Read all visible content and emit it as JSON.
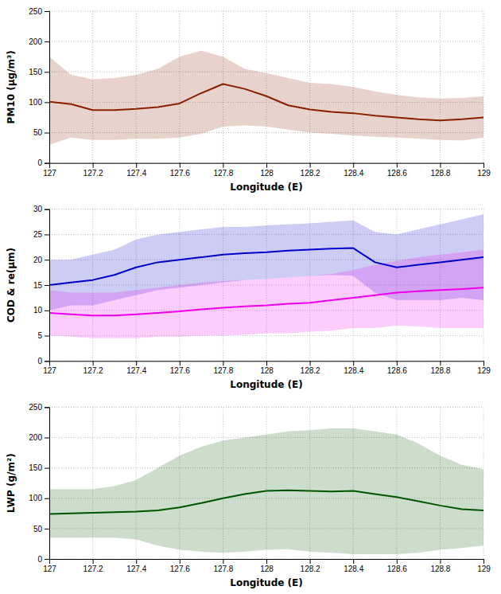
{
  "chart_data": [
    {
      "type": "line",
      "x": [
        127.0,
        127.1,
        127.2,
        127.3,
        127.4,
        127.5,
        127.6,
        127.7,
        127.8,
        127.9,
        128.0,
        128.1,
        128.2,
        128.3,
        128.4,
        128.5,
        128.6,
        128.7,
        128.8,
        128.9,
        129.0
      ],
      "series": [
        {
          "color": "#8B2000",
          "values": [
            101,
            97,
            87,
            87,
            89,
            92,
            98,
            115,
            130,
            122,
            110,
            95,
            88,
            84,
            82,
            78,
            75,
            72,
            70,
            72,
            75
          ],
          "upper": [
            175,
            145,
            138,
            140,
            145,
            155,
            175,
            185,
            175,
            155,
            148,
            140,
            132,
            130,
            125,
            118,
            112,
            108,
            106,
            107,
            110
          ],
          "lower": [
            30,
            42,
            38,
            38,
            40,
            40,
            42,
            48,
            60,
            62,
            60,
            55,
            50,
            48,
            45,
            43,
            42,
            40,
            38,
            37,
            42
          ]
        }
      ],
      "xlabel": "Longitude (E)",
      "ylabel": "PM10 (μg/m³)",
      "xlim": [
        127.0,
        129.0
      ],
      "xticks": [
        127,
        127.2,
        127.4,
        127.6,
        127.8,
        128,
        128.2,
        128.4,
        128.6,
        128.8,
        129
      ],
      "ylim": [
        0,
        250
      ],
      "yticks": [
        0,
        50,
        100,
        150,
        200,
        250
      ],
      "grid": true
    },
    {
      "type": "line",
      "x": [
        127.0,
        127.1,
        127.2,
        127.3,
        127.4,
        127.5,
        127.6,
        127.7,
        127.8,
        127.9,
        128.0,
        128.1,
        128.2,
        128.3,
        128.4,
        128.5,
        128.6,
        128.7,
        128.8,
        128.9,
        129.0
      ],
      "series": [
        {
          "color": "#0000CC",
          "values": [
            15.0,
            15.5,
            16.0,
            17.0,
            18.5,
            19.5,
            20.0,
            20.5,
            21.0,
            21.3,
            21.5,
            21.8,
            22.0,
            22.2,
            22.3,
            19.5,
            18.5,
            19.0,
            19.5,
            20.0,
            20.5
          ],
          "upper": [
            20.0,
            20.0,
            21.0,
            22.0,
            24.0,
            25.0,
            25.5,
            26.0,
            26.5,
            26.5,
            26.8,
            27.0,
            27.2,
            27.5,
            27.8,
            25.5,
            25.0,
            26.0,
            27.0,
            28.0,
            29.0
          ],
          "lower": [
            10.0,
            11.0,
            11.0,
            12.0,
            13.0,
            14.0,
            14.5,
            15.0,
            15.5,
            16.0,
            16.2,
            16.5,
            16.8,
            17.0,
            16.8,
            13.5,
            12.0,
            12.0,
            12.0,
            12.5,
            12.0
          ]
        },
        {
          "color": "#EE00EE",
          "values": [
            9.5,
            9.2,
            9.0,
            9.0,
            9.2,
            9.5,
            9.8,
            10.2,
            10.5,
            10.8,
            11.0,
            11.3,
            11.5,
            12.0,
            12.5,
            13.0,
            13.5,
            13.8,
            14.0,
            14.2,
            14.5
          ],
          "upper": [
            14.0,
            13.5,
            13.5,
            13.5,
            14.0,
            14.5,
            15.0,
            15.5,
            15.8,
            16.0,
            16.2,
            16.5,
            16.8,
            17.2,
            18.0,
            19.0,
            19.8,
            20.5,
            21.0,
            21.5,
            22.0
          ],
          "lower": [
            5.0,
            4.8,
            4.5,
            4.5,
            4.5,
            4.8,
            4.8,
            5.0,
            5.0,
            5.2,
            5.5,
            5.5,
            5.8,
            6.0,
            6.5,
            6.5,
            7.0,
            6.8,
            6.5,
            6.5,
            6.5
          ]
        }
      ],
      "xlabel": "Longitude (E)",
      "ylabel": "COD & re(μm)",
      "xlim": [
        127.0,
        129.0
      ],
      "xticks": [
        127,
        127.2,
        127.4,
        127.6,
        127.8,
        128,
        128.2,
        128.4,
        128.6,
        128.8,
        129
      ],
      "ylim": [
        0,
        30
      ],
      "yticks": [
        0,
        5,
        10,
        15,
        20,
        25,
        30
      ],
      "grid": true
    },
    {
      "type": "line",
      "x": [
        127.0,
        127.1,
        127.2,
        127.3,
        127.4,
        127.5,
        127.6,
        127.7,
        127.8,
        127.9,
        128.0,
        128.1,
        128.2,
        128.3,
        128.4,
        128.5,
        128.6,
        128.7,
        128.8,
        128.9,
        129.0
      ],
      "series": [
        {
          "color": "#005500",
          "values": [
            74,
            75,
            76,
            77,
            78,
            80,
            85,
            92,
            100,
            107,
            112,
            113,
            112,
            111,
            112,
            107,
            102,
            95,
            88,
            82,
            80
          ],
          "upper": [
            115,
            115,
            115,
            120,
            130,
            150,
            170,
            185,
            195,
            200,
            205,
            210,
            212,
            215,
            215,
            210,
            205,
            190,
            170,
            155,
            148
          ],
          "lower": [
            35,
            35,
            35,
            35,
            32,
            22,
            15,
            12,
            10,
            12,
            15,
            16,
            12,
            10,
            8,
            8,
            8,
            10,
            15,
            18,
            22
          ]
        }
      ],
      "xlabel": "Longitude (E)",
      "ylabel": "LWP (g/m²)",
      "xlim": [
        127.0,
        129.0
      ],
      "xticks": [
        127,
        127.2,
        127.4,
        127.6,
        127.8,
        128,
        128.2,
        128.4,
        128.6,
        128.8,
        129
      ],
      "ylim": [
        0,
        250
      ],
      "yticks": [
        0,
        50,
        100,
        150,
        200,
        250
      ],
      "grid": true
    }
  ]
}
